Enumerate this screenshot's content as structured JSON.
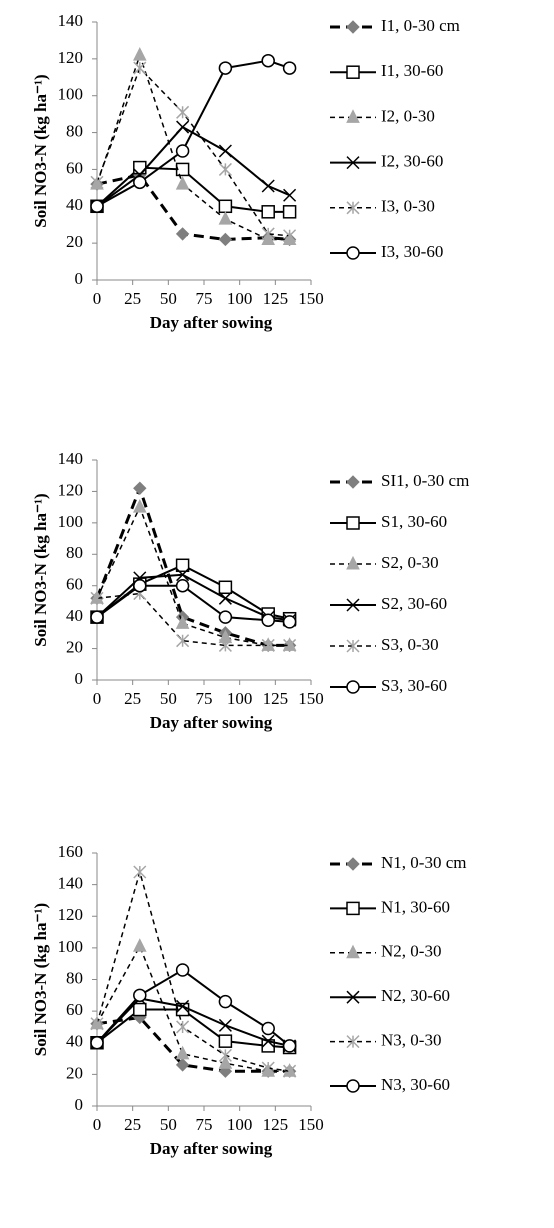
{
  "chart_data": [
    {
      "type": "line",
      "xlabel": "Day after sowing",
      "ylabel": "Soil NO3-N (kg ha⁻¹)",
      "x": [
        0,
        30,
        60,
        90,
        120,
        135
      ],
      "xlim": [
        0,
        150
      ],
      "xticks": [
        0,
        25,
        50,
        75,
        100,
        125,
        150
      ],
      "ylim": [
        0,
        140
      ],
      "yticks": [
        0,
        20,
        40,
        60,
        80,
        100,
        120,
        140
      ],
      "series": [
        {
          "name": "I1, 0-30 cm",
          "color": "#000000",
          "marker_color": "#7f7f7f",
          "marker": "diamond",
          "dash": "long",
          "values": [
            52,
            57,
            25,
            22,
            23,
            22
          ]
        },
        {
          "name": "I1, 30-60",
          "color": "#000000",
          "marker_color": "#000000",
          "marker": "square",
          "dash": "solid",
          "values": [
            40,
            61,
            60,
            40,
            37,
            37
          ]
        },
        {
          "name": "I2, 0-30",
          "color": "#000000",
          "marker_color": "#a6a6a6",
          "marker": "triangle",
          "dash": "short",
          "values": [
            52,
            122,
            52,
            33,
            22,
            22
          ]
        },
        {
          "name": "I2, 30-60",
          "color": "#000000",
          "marker_color": "#000000",
          "marker": "x",
          "dash": "solid",
          "values": [
            40,
            57,
            83,
            70,
            51,
            46
          ]
        },
        {
          "name": "I3, 0-30",
          "color": "#000000",
          "marker_color": "#a6a6a6",
          "marker": "star",
          "dash": "short",
          "values": [
            53,
            115,
            91,
            60,
            25,
            24
          ]
        },
        {
          "name": "I3, 30-60",
          "color": "#000000",
          "marker_color": "#000000",
          "marker": "circle",
          "dash": "solid",
          "values": [
            40,
            53,
            70,
            115,
            119,
            115
          ]
        }
      ]
    },
    {
      "type": "line",
      "xlabel": "Day after sowing",
      "ylabel": "Soil NO3-N (kg ha⁻¹)",
      "x": [
        0,
        30,
        60,
        90,
        120,
        135
      ],
      "xlim": [
        0,
        150
      ],
      "xticks": [
        0,
        25,
        50,
        75,
        100,
        125,
        150
      ],
      "ylim": [
        0,
        140
      ],
      "yticks": [
        0,
        20,
        40,
        60,
        80,
        100,
        120,
        140
      ],
      "series": [
        {
          "name": "SI1, 0-30 cm",
          "color": "#000000",
          "marker_color": "#7f7f7f",
          "marker": "diamond",
          "dash": "long",
          "values": [
            52,
            122,
            40,
            30,
            22,
            22
          ]
        },
        {
          "name": "S1, 30-60",
          "color": "#000000",
          "marker_color": "#000000",
          "marker": "square",
          "dash": "solid",
          "values": [
            40,
            61,
            73,
            59,
            42,
            39
          ]
        },
        {
          "name": "S2, 0-30",
          "color": "#000000",
          "marker_color": "#a6a6a6",
          "marker": "triangle",
          "dash": "short",
          "values": [
            52,
            110,
            36,
            27,
            22,
            22
          ]
        },
        {
          "name": "S2, 30-60",
          "color": "#000000",
          "marker_color": "#000000",
          "marker": "x",
          "dash": "solid",
          "values": [
            40,
            65,
            67,
            52,
            40,
            38
          ]
        },
        {
          "name": "S3, 0-30",
          "color": "#000000",
          "marker_color": "#a6a6a6",
          "marker": "star",
          "dash": "short",
          "values": [
            52,
            55,
            25,
            22,
            22,
            22
          ]
        },
        {
          "name": "S3, 30-60",
          "color": "#000000",
          "marker_color": "#000000",
          "marker": "circle",
          "dash": "solid",
          "values": [
            40,
            60,
            60,
            40,
            38,
            37
          ]
        }
      ]
    },
    {
      "type": "line",
      "xlabel": "Day after sowing",
      "ylabel": "Soil NO3-N (kg ha⁻¹)",
      "x": [
        0,
        30,
        60,
        90,
        120,
        135
      ],
      "xlim": [
        0,
        150
      ],
      "xticks": [
        0,
        25,
        50,
        75,
        100,
        125,
        150
      ],
      "ylim": [
        0,
        160
      ],
      "yticks": [
        0,
        20,
        40,
        60,
        80,
        100,
        120,
        140,
        160
      ],
      "series": [
        {
          "name": "N1, 0-30 cm",
          "color": "#000000",
          "marker_color": "#7f7f7f",
          "marker": "diamond",
          "dash": "long",
          "values": [
            52,
            56,
            26,
            22,
            22,
            22
          ]
        },
        {
          "name": "N1, 30-60",
          "color": "#000000",
          "marker_color": "#000000",
          "marker": "square",
          "dash": "solid",
          "values": [
            40,
            61,
            61,
            41,
            38,
            37
          ]
        },
        {
          "name": "N2, 0-30",
          "color": "#000000",
          "marker_color": "#a6a6a6",
          "marker": "triangle",
          "dash": "short",
          "values": [
            52,
            101,
            33,
            27,
            22,
            22
          ]
        },
        {
          "name": "N2, 30-60",
          "color": "#000000",
          "marker_color": "#000000",
          "marker": "x",
          "dash": "solid",
          "values": [
            40,
            68,
            63,
            51,
            41,
            38
          ]
        },
        {
          "name": "N3, 0-30",
          "color": "#000000",
          "marker_color": "#a6a6a6",
          "marker": "star",
          "dash": "short",
          "values": [
            52,
            148,
            50,
            32,
            24,
            22
          ]
        },
        {
          "name": "N3, 30-60",
          "color": "#000000",
          "marker_color": "#000000",
          "marker": "circle",
          "dash": "solid",
          "values": [
            40,
            70,
            86,
            66,
            49,
            38
          ]
        }
      ]
    }
  ]
}
